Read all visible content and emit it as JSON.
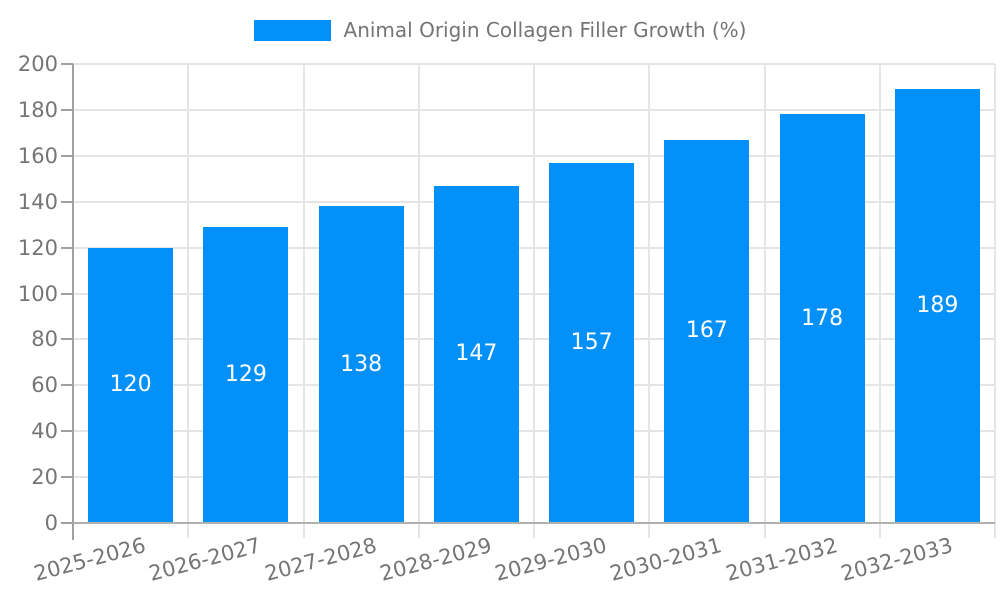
{
  "chart_data": {
    "type": "bar",
    "title": "Animal Origin Collagen Filler Growth (%)",
    "categories": [
      "2025-2026",
      "2026-2027",
      "2027-2028",
      "2028-2029",
      "2029-2030",
      "2030-2031",
      "2031-2032",
      "2032-2033"
    ],
    "values": [
      120,
      129,
      138,
      147,
      157,
      167,
      178,
      189
    ],
    "xlabel": "",
    "ylabel": "",
    "ylim": [
      0,
      200
    ],
    "ytick_step": 20,
    "yticks": [
      0,
      20,
      40,
      60,
      80,
      100,
      120,
      140,
      160,
      180,
      200
    ],
    "grid": true,
    "legend_position": "top",
    "colors": {
      "bar": "#0390f8",
      "value_label": "#ffffff",
      "axis_text": "#757575",
      "grid_line": "#e5e5e5",
      "axis_line": "#a0a0a0",
      "bottom_axis_line": "#b0b0b0"
    }
  }
}
